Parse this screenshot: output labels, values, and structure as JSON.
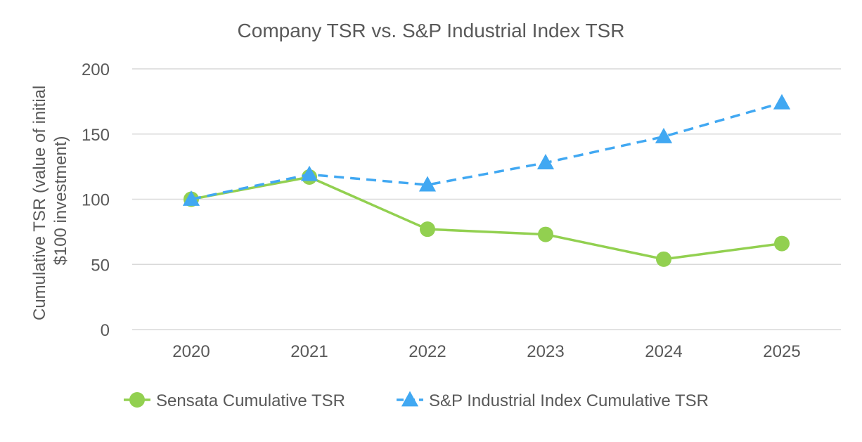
{
  "chart_data": {
    "type": "line",
    "title": "Company TSR vs. S&P Industrial Index TSR",
    "ylabel": "Cumulative TSR (value of initial $100 investment)",
    "ylabel_lines": [
      "Cumulative TSR (value of initial",
      "$100 investment)"
    ],
    "xlabel": "",
    "categories": [
      "2020",
      "2021",
      "2022",
      "2023",
      "2024",
      "2025"
    ],
    "ylim": [
      0,
      200
    ],
    "yticks": [
      0,
      50,
      100,
      150,
      200
    ],
    "ytick_labels": [
      "0",
      "50",
      "100",
      "150",
      "200"
    ],
    "grid": true,
    "legend_position": "bottom",
    "series": [
      {
        "name": "Sensata Cumulative TSR",
        "values": [
          100,
          117,
          77,
          73,
          54,
          66
        ],
        "color": "#92d050",
        "line_style": "solid",
        "marker": "circle"
      },
      {
        "name": "S&P Industrial Index Cumulative TSR",
        "values": [
          100,
          119,
          111,
          128,
          148,
          174
        ],
        "color": "#41a8f2",
        "line_style": "dashed",
        "marker": "triangle"
      }
    ]
  }
}
